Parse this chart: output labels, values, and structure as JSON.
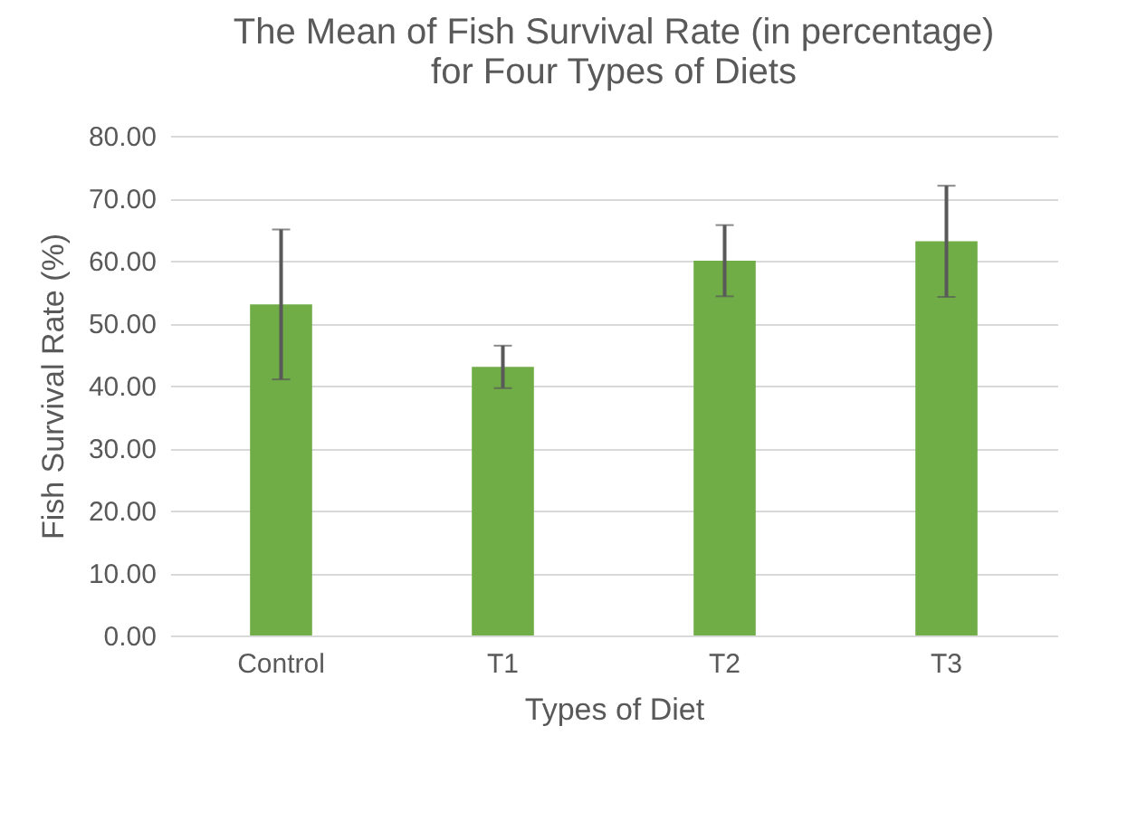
{
  "chart_data": {
    "type": "bar",
    "title": [
      "The Mean of Fish Survival Rate (in percentage)",
      "for Four Types of Diets"
    ],
    "xlabel": "Types of Diet",
    "ylabel": "Fish Survival Rate (%)",
    "categories": [
      "Control",
      "T1",
      "T2",
      "T3"
    ],
    "values": [
      53,
      43,
      60,
      63.1
    ],
    "errors": [
      12,
      3.4,
      5.7,
      8.9
    ],
    "color": "#70ad47",
    "ylim": [
      0,
      80
    ],
    "yticks": [
      {
        "value": 0,
        "label": "0.00"
      },
      {
        "value": 10,
        "label": "10.00"
      },
      {
        "value": 20,
        "label": "20.00"
      },
      {
        "value": 30,
        "label": "30.00"
      },
      {
        "value": 40,
        "label": "40.00"
      },
      {
        "value": 50,
        "label": "50.00"
      },
      {
        "value": 60,
        "label": "60.00"
      },
      {
        "value": 70,
        "label": "70.00"
      },
      {
        "value": 80,
        "label": "80.00"
      }
    ],
    "grid": "y"
  }
}
